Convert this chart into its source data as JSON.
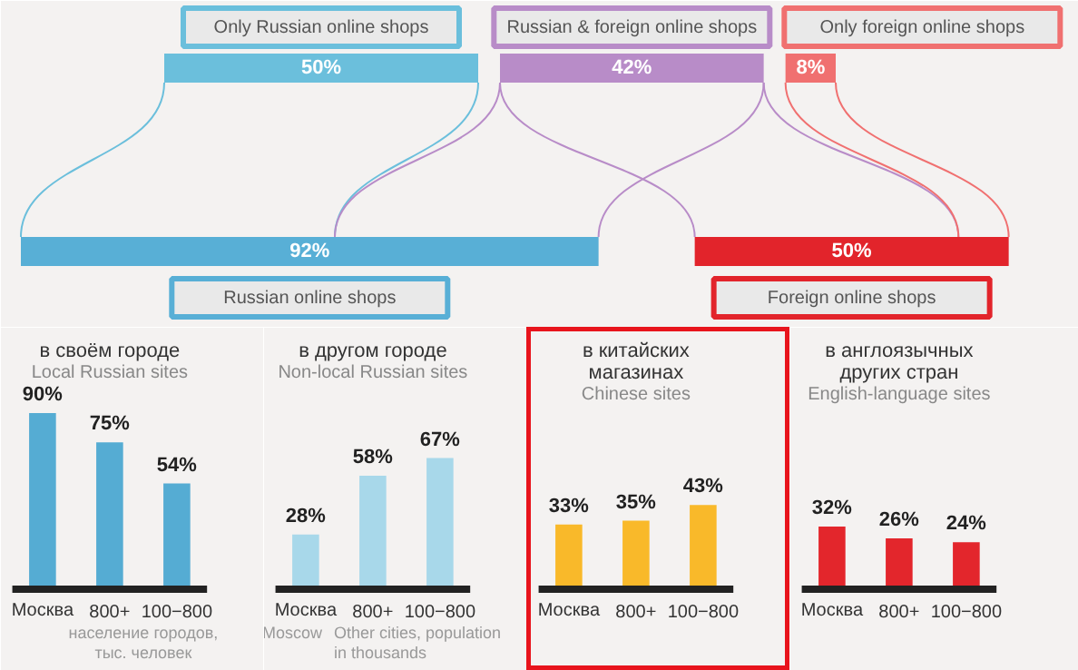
{
  "chart_data": [
    {
      "type": "other",
      "categories": [
        "Only Russian online shops",
        "Russian & foreign online shops",
        "Only foreign online shops",
        "Russian online shops",
        "Foreign online shops"
      ],
      "values": [
        50,
        42,
        8,
        92,
        50
      ],
      "colors": [
        "#6bbfdc",
        "#b88cc8",
        "#f07070",
        "#58afd6",
        "#e2242b"
      ],
      "value_labels": [
        "50%",
        "42%",
        "8%",
        "92%",
        "50%"
      ]
    },
    {
      "type": "bar",
      "title": "в своём городе",
      "subtitle": "Local Russian sites",
      "categories": [
        "Москва",
        "800+",
        "100−800"
      ],
      "values": [
        90,
        75,
        54
      ],
      "color": "#55acd3",
      "value_labels": [
        "90%",
        "75%",
        "54%"
      ],
      "annotations": [
        "население городов, тыс. человек"
      ]
    },
    {
      "type": "bar",
      "title": "в другом городе",
      "subtitle": "Non-local Russian sites",
      "categories": [
        "Москва",
        "800+",
        "100−800"
      ],
      "values": [
        28,
        58,
        67
      ],
      "color": "#a8d8ea",
      "value_labels": [
        "28%",
        "58%",
        "67%"
      ],
      "annotations": [
        "Moscow",
        "Other cities, population in thousands"
      ]
    },
    {
      "type": "bar",
      "title": "в китайских магазинах",
      "subtitle": "Chinese sites",
      "categories": [
        "Москва",
        "800+",
        "100−800"
      ],
      "values": [
        33,
        35,
        43
      ],
      "color": "#f9b92a",
      "value_labels": [
        "33%",
        "35%",
        "43%"
      ]
    },
    {
      "type": "bar",
      "title": "в англоязычных других стран",
      "subtitle": "English-language sites",
      "categories": [
        "Москва",
        "800+",
        "100−800"
      ],
      "values": [
        32,
        26,
        24
      ],
      "color": "#e3262c",
      "value_labels": [
        "32%",
        "26%",
        "24%"
      ]
    }
  ]
}
